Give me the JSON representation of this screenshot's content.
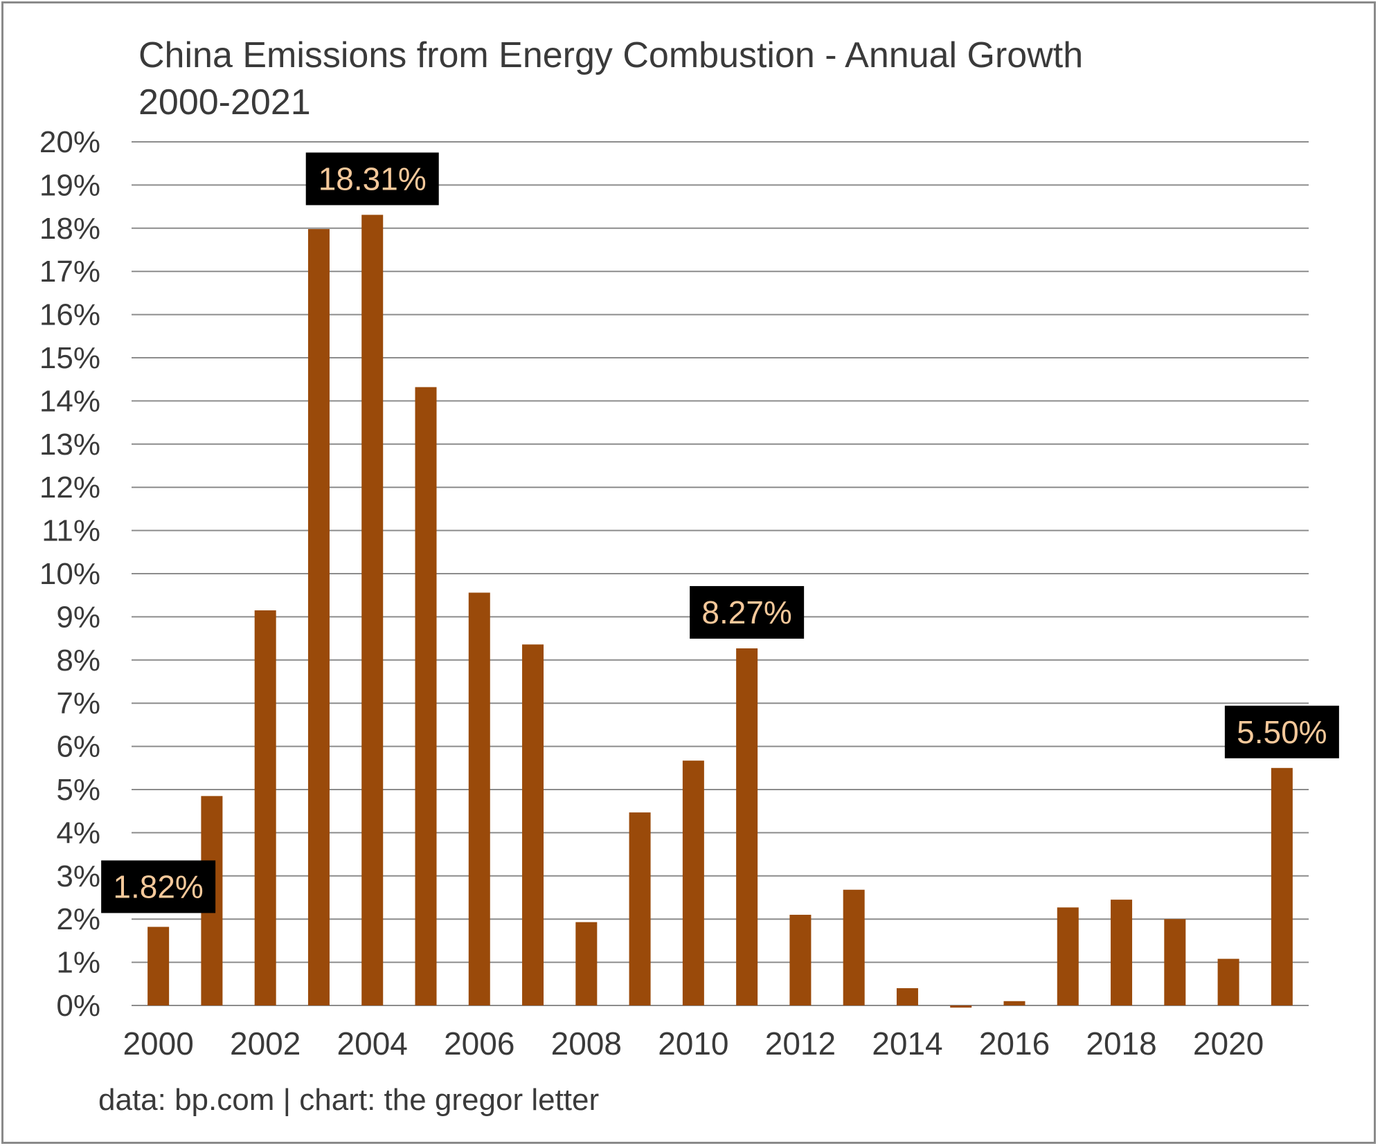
{
  "chart_data": {
    "type": "bar",
    "title": "China Emissions from Energy Combustion - Annual Growth",
    "subtitle": "2000-2021",
    "source": "data: bp.com | chart: the gregor letter",
    "xlabel": "",
    "ylabel": "",
    "ylim": [
      0,
      20
    ],
    "grid": true,
    "bar_color": "#9a4a0a",
    "callout_bg": "#000000",
    "callout_text_color": "#f5c89a",
    "y_tick_labels": [
      "0%",
      "1%",
      "2%",
      "3%",
      "4%",
      "5%",
      "6%",
      "7%",
      "8%",
      "9%",
      "10%",
      "11%",
      "12%",
      "13%",
      "14%",
      "15%",
      "16%",
      "17%",
      "18%",
      "19%",
      "20%"
    ],
    "x_tick_labels": [
      "2000",
      "2002",
      "2004",
      "2006",
      "2008",
      "2010",
      "2012",
      "2014",
      "2016",
      "2018",
      "2020"
    ],
    "categories": [
      "2000",
      "2001",
      "2002",
      "2003",
      "2004",
      "2005",
      "2006",
      "2007",
      "2008",
      "2009",
      "2010",
      "2011",
      "2012",
      "2013",
      "2014",
      "2015",
      "2016",
      "2017",
      "2018",
      "2019",
      "2020",
      "2021"
    ],
    "values": [
      1.82,
      4.85,
      9.15,
      17.98,
      18.31,
      14.32,
      9.56,
      8.36,
      1.93,
      4.47,
      5.67,
      8.27,
      2.1,
      2.68,
      0.4,
      -0.05,
      0.1,
      2.27,
      2.45,
      2.0,
      1.08,
      5.5
    ],
    "annotations": [
      {
        "year": "2000",
        "label": "1.82%"
      },
      {
        "year": "2004",
        "label": "18.31%"
      },
      {
        "year": "2011",
        "label": "8.27%"
      },
      {
        "year": "2021",
        "label": "5.50%"
      }
    ]
  }
}
